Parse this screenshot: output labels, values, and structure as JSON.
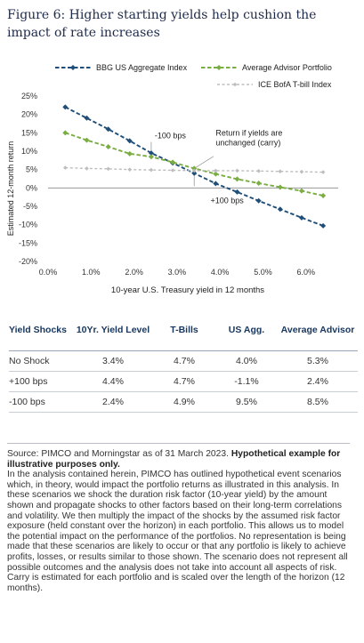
{
  "figure": {
    "title": "Figure 6: Higher starting yields help cushion the impact of rate increases"
  },
  "chart_data": {
    "type": "line",
    "xlabel": "10-year U.S. Treasury yield in 12 months",
    "ylabel": "Estimated 12-month return",
    "xlim": [
      0,
      6.75
    ],
    "ylim": [
      -20,
      25
    ],
    "xticks": [
      "0.0%",
      "1.0%",
      "2.0%",
      "3.0%",
      "4.0%",
      "5.0%",
      "6.0%"
    ],
    "yticks": [
      "25%",
      "20%",
      "15%",
      "10%",
      "5%",
      "0%",
      "-5%",
      "-10%",
      "-15%",
      "-20%"
    ],
    "legend_position": "top",
    "series": [
      {
        "name": "BBG US Aggregate Index",
        "color": "#1f4e79",
        "style": "dashed-diamond",
        "x": [
          0.4,
          0.9,
          1.4,
          1.9,
          2.4,
          2.9,
          3.4,
          3.9,
          4.4,
          4.9,
          5.4,
          5.9,
          6.4
        ],
        "y": [
          22,
          19,
          16,
          12.8,
          9.5,
          6.8,
          4.0,
          1.2,
          -1.1,
          -3.5,
          -5.8,
          -8.1,
          -10.3
        ]
      },
      {
        "name": "Average Advisor Portfolio",
        "color": "#7aad42",
        "style": "dashed-diamond",
        "x": [
          0.4,
          0.9,
          1.4,
          1.9,
          2.4,
          2.9,
          3.4,
          3.9,
          4.4,
          4.9,
          5.4,
          5.9,
          6.4
        ],
        "y": [
          15,
          13,
          11.2,
          9.3,
          8.5,
          7.0,
          5.3,
          3.8,
          2.4,
          1.3,
          0.2,
          -0.8,
          -2.1
        ]
      },
      {
        "name": "ICE BofA T-bill Index",
        "color": "#bdbdbd",
        "style": "dashed-diamond",
        "x": [
          0.4,
          0.9,
          1.4,
          1.9,
          2.4,
          2.9,
          3.4,
          3.9,
          4.4,
          4.9,
          5.4,
          5.9,
          6.4
        ],
        "y": [
          5.5,
          5.3,
          5.2,
          5.0,
          4.9,
          4.8,
          4.7,
          4.7,
          4.7,
          4.6,
          4.5,
          4.4,
          4.3
        ]
      }
    ],
    "annotations": [
      {
        "text": "-100 bps",
        "x": 2.4
      },
      {
        "text": "+100 bps",
        "x": 4.4
      },
      {
        "text": "Return if yields are unchanged (carry)",
        "x": 3.4
      }
    ]
  },
  "table": {
    "headers": [
      "Yield Shocks",
      "10Yr. Yield Level",
      "T-Bills",
      "US Agg.",
      "Average Advisor"
    ],
    "rows": [
      [
        "No Shock",
        "3.4%",
        "4.7%",
        "4.0%",
        "5.3%"
      ],
      [
        "+100 bps",
        "4.4%",
        "4.7%",
        "-1.1%",
        "2.4%"
      ],
      [
        "-100 bps",
        "2.4%",
        "4.9%",
        "9.5%",
        "8.5%"
      ]
    ]
  },
  "footer": {
    "source": "Source: PIMCO and Morningstar as of 31 March 2023.",
    "bold_note": "Hypothetical example for illustrative purposes only.",
    "body": "In the analysis contained herein, PIMCO has outlined hypothetical event scenarios which, in theory, would impact the portfolio returns as illustrated in this analysis. In these scenarios we shock the duration risk factor (10-year yield) by the amount shown and propagate shocks to other factors based on their long-term correlations and volatility. We then multiply the impact of the shocks by the assumed risk factor exposure (held constant over the horizon) in each portfolio. This allows us to model the potential impact on the performance of the portfolios. No representation is being made that these scenarios are likely to occur or that any portfolio is likely to achieve profits, losses, or results similar to those shown. The scenario does not represent all possible outcomes and the analysis does not take into account all aspects of risk. Carry is estimated for each portfolio and is scaled over the length of the horizon (12 months)."
  }
}
